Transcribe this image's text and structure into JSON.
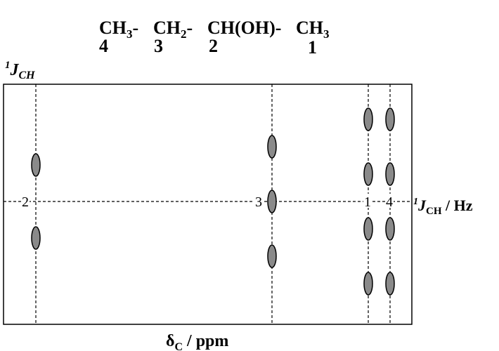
{
  "formula": {
    "groups": [
      {
        "base": "CH",
        "sub": "3",
        "sep": "-",
        "num": "4"
      },
      {
        "base": "CH",
        "sub": "2",
        "sep": "-",
        "num": "3"
      },
      {
        "base": "CH(OH)",
        "sub": "",
        "sep": "-",
        "num": "2"
      },
      {
        "base": "CH",
        "sub": "3",
        "sep": "",
        "num": "1"
      }
    ]
  },
  "axes": {
    "y_label": {
      "base": "J",
      "sup": "1",
      "sub": "CH"
    },
    "right_label": {
      "base": "J",
      "sup": "1",
      "sub": "CH",
      "tail": " / Hz"
    },
    "x_label": {
      "base": "δ",
      "sub": "C",
      "tail": " / ppm"
    }
  },
  "carbons": [
    {
      "label": "2",
      "peaks": [
        2,
        -2
      ]
    },
    {
      "label": "3",
      "peaks": [
        3,
        0,
        -3
      ]
    },
    {
      "label": "1",
      "peaks": [
        4.5,
        1.5,
        -1.5,
        -4.5
      ]
    },
    {
      "label": "4",
      "peaks": [
        4.5,
        1.5,
        -1.5,
        -4.5
      ]
    }
  ],
  "colors": {
    "peak_fill": "#8a8a8a",
    "line": "#000000",
    "background": "#ffffff"
  }
}
